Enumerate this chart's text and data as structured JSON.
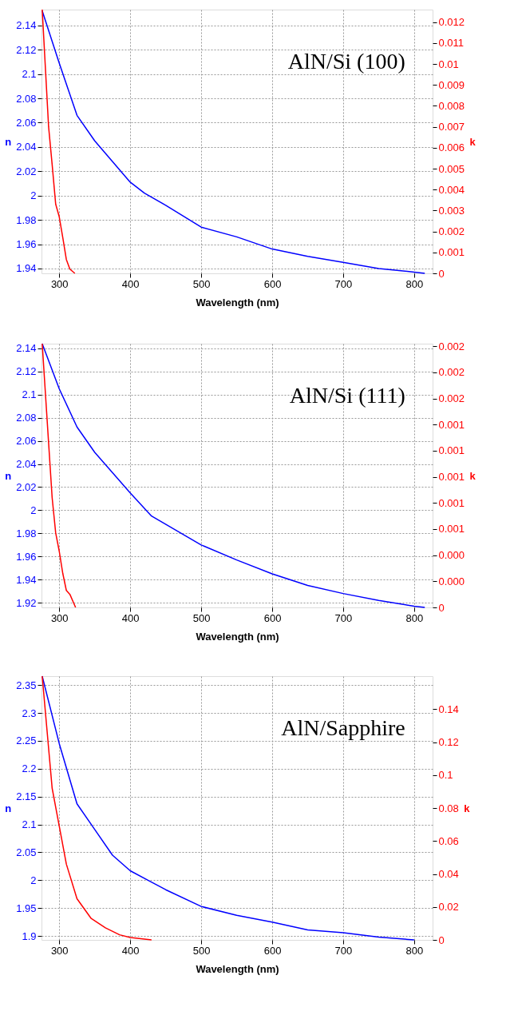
{
  "chart_data": [
    {
      "type": "line",
      "xlabel": "Wavelength (nm)",
      "ylabel": "n",
      "y2label": "k",
      "annotations": [
        "AlN/Si (100)"
      ],
      "grid": true,
      "marker": "none",
      "xlim": [
        275,
        826
      ],
      "xticks": [
        300,
        400,
        500,
        600,
        700,
        800
      ],
      "ylim": [
        1.936,
        2.153
      ],
      "yticks": [
        1.94,
        1.96,
        1.98,
        2,
        2.02,
        2.04,
        2.06,
        2.08,
        2.1,
        2.12,
        2.14
      ],
      "y2lim": [
        0,
        0.0126
      ],
      "y2ticks": [
        0,
        0.001,
        0.002,
        0.003,
        0.004,
        0.005,
        0.006,
        0.007,
        0.008,
        0.009,
        0.01,
        0.011,
        0.012
      ],
      "series": [
        {
          "color": "#0000ff",
          "x": [
            276,
            300,
            325,
            350,
            400,
            420,
            450,
            500,
            550,
            600,
            650,
            700,
            750,
            800,
            815
          ],
          "values": [
            2.152,
            2.109,
            2.066,
            2.045,
            2.011,
            2.002,
            1.992,
            1.974,
            1.966,
            1.956,
            1.95,
            1.945,
            1.94,
            1.937,
            1.936
          ]
        },
        {
          "color": "#ff0000",
          "axis": "y2",
          "x": [
            276,
            285,
            290,
            295,
            300,
            305,
            310,
            315,
            322
          ],
          "values": [
            0.0126,
            0.007,
            0.0052,
            0.0033,
            0.0027,
            0.0017,
            0.00066,
            0.0002,
            0
          ]
        }
      ]
    },
    {
      "type": "line",
      "xlabel": "Wavelength (nm)",
      "ylabel": "n",
      "y2label": "k",
      "annotations": [
        "AlN/Si (111)"
      ],
      "grid": true,
      "marker": "none",
      "xlim": [
        275,
        826
      ],
      "xticks": [
        300,
        400,
        500,
        600,
        700,
        800
      ],
      "ylim": [
        1.916,
        2.144
      ],
      "yticks": [
        1.92,
        1.94,
        1.96,
        1.98,
        2,
        2.02,
        2.04,
        2.06,
        2.08,
        2.1,
        2.12,
        2.14
      ],
      "y2lim": [
        0,
        0.00202
      ],
      "y2ticks": [
        0,
        {
          "value": 0.0002,
          "label": "0.000"
        },
        {
          "value": 0.0004,
          "label": "0.000"
        },
        {
          "value": 0.0006,
          "label": "0.001"
        },
        {
          "value": 0.0008,
          "label": "0.001"
        },
        0.001,
        {
          "value": 0.0012,
          "label": "0.001"
        },
        {
          "value": 0.0014,
          "label": "0.001"
        },
        {
          "value": 0.0016,
          "label": "0.002"
        },
        {
          "value": 0.0018,
          "label": "0.002"
        },
        0.002
      ],
      "series": [
        {
          "color": "#0000ff",
          "x": [
            276,
            300,
            325,
            350,
            400,
            430,
            500,
            550,
            600,
            650,
            700,
            750,
            800,
            815
          ],
          "values": [
            2.144,
            2.105,
            2.072,
            2.05,
            2.015,
            1.995,
            1.97,
            1.957,
            1.945,
            1.935,
            1.928,
            1.922,
            1.917,
            1.916
          ]
        },
        {
          "color": "#ff0000",
          "axis": "y2",
          "x": [
            276,
            285,
            290,
            295,
            300,
            305,
            310,
            315,
            323
          ],
          "values": [
            0.00202,
            0.00126,
            0.00084,
            0.00057,
            0.00043,
            0.00026,
            0.00013,
            0.0001,
            0
          ]
        }
      ]
    },
    {
      "type": "line",
      "xlabel": "Wavelength (nm)",
      "ylabel": "n",
      "y2label": "k",
      "annotations": [
        "AlN/Sapphire"
      ],
      "grid": true,
      "marker": "none",
      "xlim": [
        275,
        826
      ],
      "xticks": [
        300,
        400,
        500,
        600,
        700,
        800
      ],
      "ylim": [
        1.893,
        2.366
      ],
      "yticks": [
        1.9,
        1.95,
        2,
        2.05,
        2.1,
        2.15,
        2.2,
        2.25,
        2.3,
        2.35
      ],
      "y2lim": [
        0,
        0.16
      ],
      "y2ticks": [
        0,
        0.02,
        0.04,
        0.06,
        0.08,
        0.1,
        0.12,
        0.14
      ],
      "series": [
        {
          "color": "#0000ff",
          "x": [
            276,
            300,
            325,
            350,
            375,
            400,
            425,
            450,
            500,
            550,
            600,
            650,
            700,
            750,
            800
          ],
          "values": [
            2.366,
            2.245,
            2.137,
            2.091,
            2.045,
            2.017,
            2.0,
            1.983,
            1.953,
            1.937,
            1.925,
            1.911,
            1.906,
            1.898,
            1.893
          ]
        },
        {
          "color": "#ff0000",
          "axis": "y2",
          "x": [
            276,
            290,
            300,
            310,
            325,
            345,
            365,
            385,
            400,
            430
          ],
          "values": [
            0.16,
            0.092,
            0.069,
            0.046,
            0.025,
            0.013,
            0.0073,
            0.0031,
            0.0015,
            0
          ]
        }
      ]
    }
  ]
}
